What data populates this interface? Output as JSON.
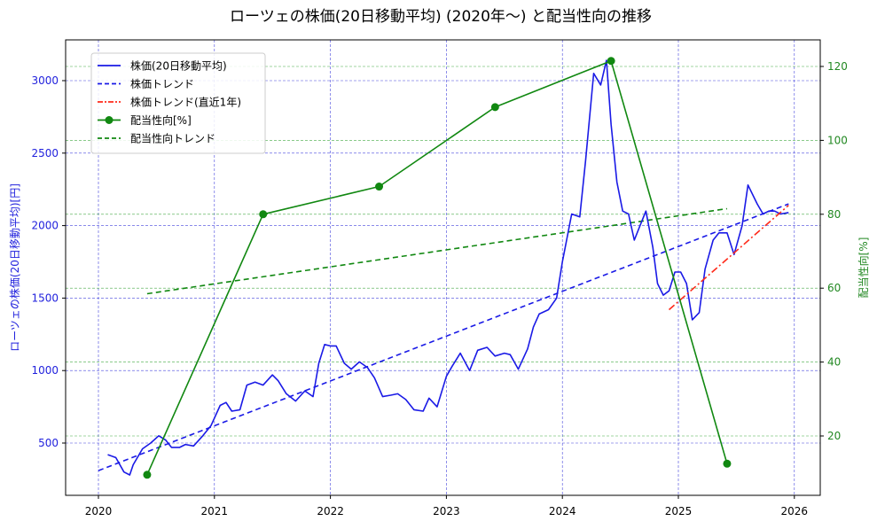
{
  "title": "ローツェの株価(20日移動平均) (2020年〜) と配当性向の推移",
  "axes": {
    "left_label": "ローツェの株価(20日移動平均)[円]",
    "right_label": "配当性向[%]",
    "x_ticks": [
      "2020",
      "2021",
      "2022",
      "2023",
      "2024",
      "2025",
      "2026"
    ],
    "left_ticks": [
      "500",
      "1000",
      "1500",
      "2000",
      "2500",
      "3000"
    ],
    "right_ticks": [
      "20",
      "40",
      "60",
      "80",
      "100",
      "120"
    ]
  },
  "legend": {
    "items": [
      {
        "label": "株価(20日移動平均)",
        "color": "#1a1ae6",
        "style": "solid"
      },
      {
        "label": "株価トレンド",
        "color": "#1a1ae6",
        "style": "dashed"
      },
      {
        "label": "株価トレンド(直近1年)",
        "color": "#ff2a1a",
        "style": "dashdot"
      },
      {
        "label": "配当性向[%]",
        "color": "#118811",
        "style": "solid-marker"
      },
      {
        "label": "配当性向トレンド",
        "color": "#118811",
        "style": "dashed"
      }
    ]
  },
  "colors": {
    "price": "#1a1ae6",
    "price_trend": "#1a1ae6",
    "price_trend_recent": "#ff2a1a",
    "payout": "#118811",
    "payout_trend": "#118811",
    "grid_left": "#4444dd",
    "grid_right": "#44aa44"
  },
  "chart_data": {
    "type": "line",
    "title": "ローツェの株価(20日移動平均) (2020年〜) と配当性向の推移",
    "xlabel": "",
    "ylabel": "ローツェの株価(20日移動平均)[円]",
    "y2label": "配当性向[%]",
    "xlim": [
      2019.72,
      2026.23
    ],
    "ylim": [
      150,
      3280
    ],
    "y2lim": [
      4,
      127
    ],
    "grid": true,
    "legend_position": "upper left",
    "series": [
      {
        "name": "株価(20日移動平均)",
        "axis": "left",
        "x": [
          2020.08,
          2020.15,
          2020.22,
          2020.27,
          2020.3,
          2020.38,
          2020.45,
          2020.52,
          2020.58,
          2020.63,
          2020.7,
          2020.75,
          2020.82,
          2020.9,
          2020.97,
          2021.05,
          2021.1,
          2021.15,
          2021.22,
          2021.28,
          2021.35,
          2021.42,
          2021.5,
          2021.55,
          2021.62,
          2021.7,
          2021.78,
          2021.85,
          2021.9,
          2021.95,
          2022.0,
          2022.05,
          2022.12,
          2022.18,
          2022.25,
          2022.32,
          2022.38,
          2022.45,
          2022.52,
          2022.58,
          2022.65,
          2022.72,
          2022.8,
          2022.85,
          2022.92,
          2023.0,
          2023.05,
          2023.12,
          2023.2,
          2023.27,
          2023.35,
          2023.42,
          2023.5,
          2023.55,
          2023.62,
          2023.7,
          2023.75,
          2023.8,
          2023.88,
          2023.95,
          2024.0,
          2024.08,
          2024.15,
          2024.2,
          2024.27,
          2024.33,
          2024.38,
          2024.42,
          2024.47,
          2024.52,
          2024.57,
          2024.62,
          2024.67,
          2024.72,
          2024.78,
          2024.82,
          2024.87,
          2024.92,
          2024.97,
          2025.02,
          2025.07,
          2025.12,
          2025.18,
          2025.23,
          2025.3,
          2025.35,
          2025.42,
          2025.48,
          2025.55,
          2025.6,
          2025.68,
          2025.73,
          2025.78,
          2025.83,
          2025.88,
          2025.95
        ],
        "values": [
          420,
          400,
          300,
          280,
          350,
          460,
          500,
          550,
          520,
          470,
          470,
          490,
          480,
          550,
          620,
          760,
          780,
          720,
          730,
          900,
          920,
          900,
          970,
          930,
          840,
          790,
          860,
          820,
          1050,
          1180,
          1170,
          1170,
          1050,
          1010,
          1060,
          1020,
          950,
          820,
          830,
          840,
          800,
          730,
          720,
          810,
          750,
          960,
          1030,
          1120,
          1000,
          1140,
          1160,
          1100,
          1120,
          1110,
          1010,
          1150,
          1300,
          1390,
          1420,
          1500,
          1750,
          2080,
          2060,
          2450,
          3050,
          2970,
          3140,
          2700,
          2300,
          2100,
          2080,
          1900,
          2000,
          2100,
          1850,
          1600,
          1520,
          1550,
          1680,
          1680,
          1600,
          1350,
          1400,
          1700,
          1900,
          1950,
          1950,
          1800,
          2000,
          2280,
          2150,
          2080,
          2100,
          2100,
          2080,
          2090
        ]
      },
      {
        "name": "株価トレンド",
        "axis": "left",
        "x": [
          2020.0,
          2025.95
        ],
        "values": [
          310,
          2150
        ]
      },
      {
        "name": "株価トレンド(直近1年)",
        "axis": "left",
        "x": [
          2024.92,
          2025.95
        ],
        "values": [
          1420,
          2140
        ]
      },
      {
        "name": "配当性向[%]",
        "axis": "right",
        "x": [
          2020.42,
          2021.42,
          2022.42,
          2023.42,
          2024.42,
          2025.42
        ],
        "values": [
          9.5,
          80.0,
          87.5,
          109.0,
          121.5,
          12.5
        ]
      },
      {
        "name": "配当性向トレンド",
        "axis": "right",
        "x": [
          2020.42,
          2025.42
        ],
        "values": [
          58.5,
          81.5
        ]
      }
    ]
  }
}
